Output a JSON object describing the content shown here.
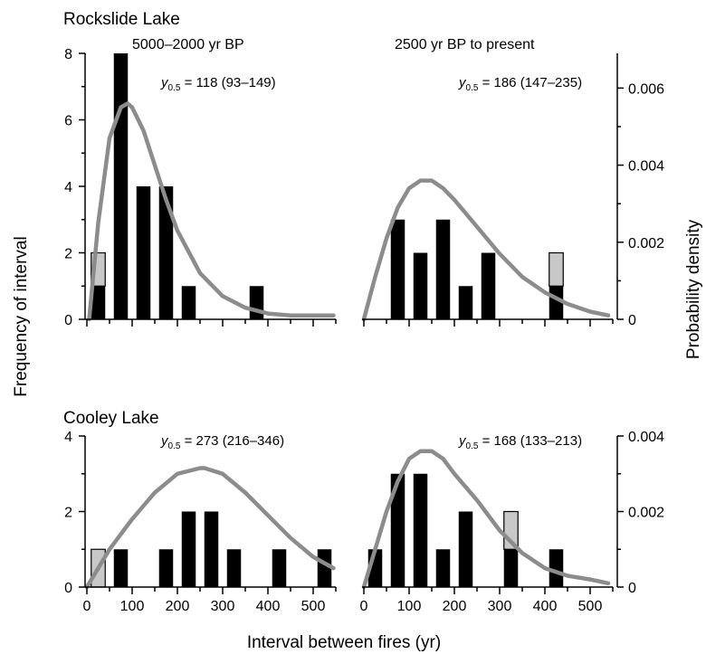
{
  "figure": {
    "xlabel": "Interval between fires (yr)",
    "ylabel_left": "Frequency of interval",
    "ylabel_right": "Probability density",
    "colors": {
      "bar_full": "#000000",
      "bar_partial": "#c8c8c8",
      "curve": "#8c8c8c"
    }
  },
  "chart_data": [
    {
      "type": "bar",
      "lake": "Rockslide Lake",
      "period": "5000–2000 yr BP",
      "median_label": "118 (93–149)",
      "bins_center": [
        25,
        75,
        125,
        175,
        225,
        275,
        325,
        375,
        425,
        475,
        525
      ],
      "series": [
        {
          "name": "",
          "values": [
            1,
            8,
            4,
            4,
            1,
            0,
            0,
            1,
            0,
            0,
            0
          ]
        },
        {
          "name": "",
          "values": [
            1,
            0,
            0,
            0,
            0,
            0,
            0,
            0,
            0,
            0,
            0
          ]
        }
      ],
      "xlim": [
        0,
        550
      ],
      "ylim": [
        0,
        8
      ],
      "yticks": [
        "0",
        "2",
        "4",
        "6",
        "8"
      ],
      "curve_density": {
        "x": [
          5,
          25,
          50,
          75,
          90,
          100,
          125,
          150,
          175,
          200,
          250,
          300,
          350,
          400,
          450,
          500,
          545
        ],
        "y": [
          0.0,
          0.0025,
          0.0047,
          0.0055,
          0.0056,
          0.0055,
          0.0049,
          0.004,
          0.0031,
          0.0023,
          0.0012,
          0.0006,
          0.0003,
          0.00015,
          0.0001,
          0.0001,
          0.0001
        ]
      },
      "density_ylim": [
        0,
        0.0069
      ]
    },
    {
      "type": "bar",
      "lake": "",
      "period": "2500 yr BP to present",
      "median_label": "186 (147–235)",
      "bins_center": [
        25,
        75,
        125,
        175,
        225,
        275,
        325,
        375,
        425,
        475,
        525
      ],
      "series": [
        {
          "name": "",
          "values": [
            0,
            3,
            2,
            3,
            1,
            2,
            0,
            0,
            1,
            0,
            0
          ]
        },
        {
          "name": "",
          "values": [
            0,
            0,
            0,
            0,
            0,
            0,
            0,
            0,
            1,
            0,
            0
          ]
        }
      ],
      "xlim": [
        0,
        550
      ],
      "ylim": [
        0,
        8
      ],
      "right_axis": {
        "label": "Probability density",
        "yticks": [
          "0",
          "0.002",
          "0.004",
          "0.006"
        ],
        "ylim": [
          0,
          0.0069
        ]
      },
      "curve_density": {
        "x": [
          0,
          25,
          50,
          75,
          100,
          125,
          150,
          175,
          200,
          250,
          300,
          350,
          400,
          450,
          500,
          540
        ],
        "y": [
          0.0,
          0.0011,
          0.0021,
          0.0029,
          0.0034,
          0.0036,
          0.0036,
          0.0034,
          0.0031,
          0.0024,
          0.0017,
          0.0011,
          0.0007,
          0.0004,
          0.0002,
          0.0001
        ]
      },
      "density_ylim": [
        0,
        0.0069
      ]
    },
    {
      "type": "bar",
      "lake": "Cooley Lake",
      "period": "",
      "median_label": "273 (216–346)",
      "bins_center": [
        25,
        75,
        125,
        175,
        225,
        275,
        325,
        375,
        425,
        475,
        525
      ],
      "series": [
        {
          "name": "",
          "values": [
            0,
            1,
            0,
            1,
            2,
            2,
            1,
            0,
            1,
            0,
            1
          ]
        },
        {
          "name": "",
          "values": [
            1,
            0,
            0,
            0,
            0,
            0,
            0,
            0,
            0,
            0,
            0
          ]
        }
      ],
      "xlim": [
        0,
        550
      ],
      "ylim": [
        0,
        4
      ],
      "yticks": [
        "0",
        "2",
        "4"
      ],
      "xticks": [
        "0",
        "100",
        "200",
        "300",
        "400",
        "500"
      ],
      "curve_density": {
        "x": [
          0,
          50,
          100,
          150,
          200,
          250,
          260,
          300,
          350,
          400,
          450,
          500,
          545
        ],
        "y": [
          0.0,
          0.001,
          0.0018,
          0.0025,
          0.003,
          0.00315,
          0.00315,
          0.003,
          0.0025,
          0.0019,
          0.0013,
          0.0008,
          0.0005
        ]
      },
      "density_ylim": [
        0,
        0.004
      ]
    },
    {
      "type": "bar",
      "lake": "",
      "period": "",
      "median_label": "168 (133–213)",
      "bins_center": [
        25,
        75,
        125,
        175,
        225,
        275,
        325,
        375,
        425,
        475,
        525
      ],
      "series": [
        {
          "name": "",
          "values": [
            1,
            3,
            3,
            1,
            2,
            0,
            1,
            0,
            1,
            0,
            0
          ]
        },
        {
          "name": "",
          "values": [
            0,
            0,
            0,
            0,
            0,
            0,
            1,
            0,
            0,
            0,
            0
          ]
        }
      ],
      "xlim": [
        0,
        550
      ],
      "ylim": [
        0,
        4
      ],
      "xticks": [
        "0",
        "100",
        "200",
        "300",
        "400",
        "500"
      ],
      "right_axis": {
        "label": "Probability density",
        "yticks": [
          "0",
          "0.002",
          "0.004"
        ],
        "ylim": [
          0,
          0.004
        ]
      },
      "curve_density": {
        "x": [
          0,
          25,
          50,
          75,
          100,
          125,
          150,
          175,
          200,
          250,
          300,
          350,
          400,
          450,
          500,
          540
        ],
        "y": [
          0.0,
          0.001,
          0.002,
          0.0028,
          0.0034,
          0.0036,
          0.0036,
          0.0034,
          0.003,
          0.0023,
          0.0015,
          0.0009,
          0.0005,
          0.0003,
          0.0002,
          0.0001
        ]
      },
      "density_ylim": [
        0,
        0.004
      ]
    }
  ]
}
